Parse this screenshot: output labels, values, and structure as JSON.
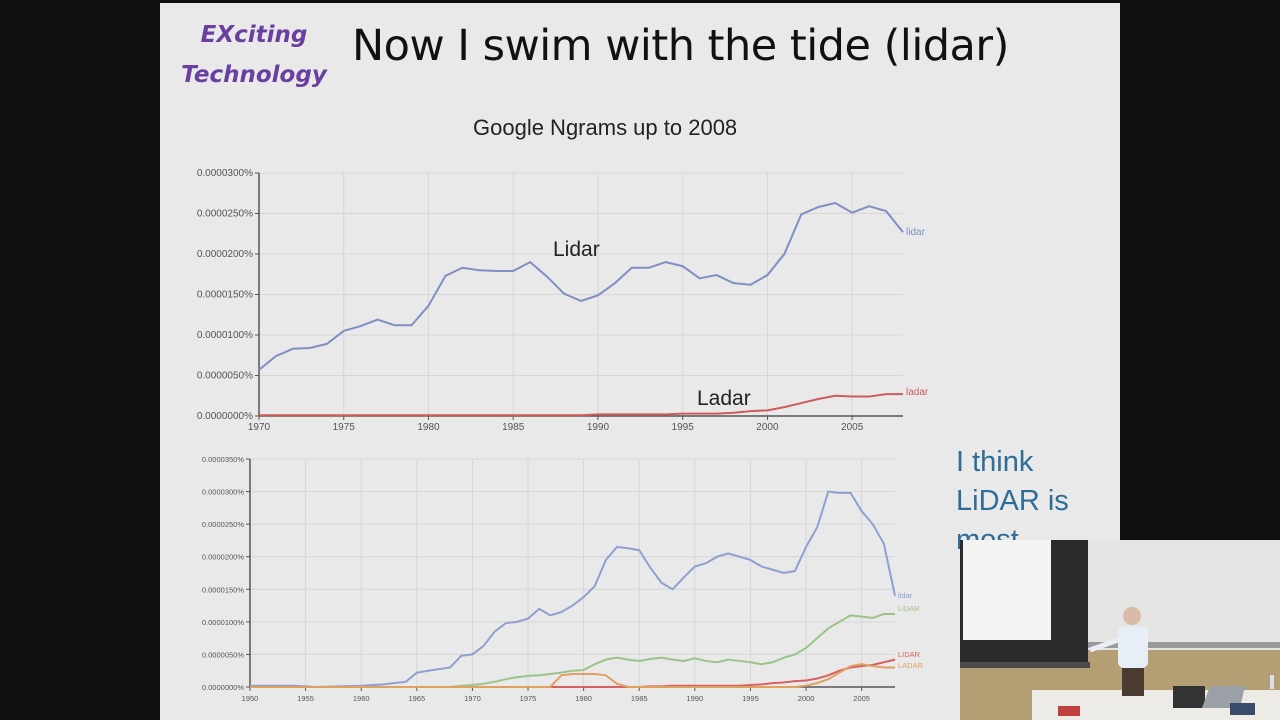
{
  "slide": {
    "brand_line1": "EXciting",
    "brand_line2": "Technology",
    "title": "Now I swim with the tide (lidar)",
    "subtitle": "Google Ngrams up to 2008",
    "side_note": "I think LiDAR is most",
    "colors": {
      "brand": "#6a3fa0",
      "lidar_line": "#7f8fc4",
      "ladar_line": "#d05a5a",
      "side_note": "#2f6d99",
      "slide_bg": "#e9e9e9",
      "frame_bg": "#0f0f0f"
    }
  },
  "upper_chart": {
    "annotation_lidar": "Lidar",
    "annotation_ladar": "Ladar",
    "series_label_lidar": "lidar",
    "series_label_ladar": "ladar"
  },
  "lower_chart": {
    "series_labels": [
      "lidar",
      "LiDAR",
      "LIDAR",
      "LADAR"
    ]
  },
  "webcam": {
    "description": "Presenter standing at front of lecture room beside projected slide"
  },
  "chart_data": [
    {
      "type": "line",
      "title": "Google Ngrams up to 2008",
      "xlabel": "",
      "ylabel": "",
      "x": [
        1970,
        1971,
        1972,
        1973,
        1974,
        1975,
        1976,
        1977,
        1978,
        1979,
        1980,
        1981,
        1982,
        1983,
        1984,
        1985,
        1986,
        1987,
        1988,
        1989,
        1990,
        1991,
        1992,
        1993,
        1994,
        1995,
        1996,
        1997,
        1998,
        1999,
        2000,
        2001,
        2002,
        2003,
        2004,
        2005,
        2006,
        2007,
        2008
      ],
      "xticks": [
        "1970",
        "1975",
        "1980",
        "1985",
        "1990",
        "1995",
        "2000",
        "2005"
      ],
      "yticks": [
        "0.0000000%",
        "0.0000050%",
        "0.0000100%",
        "0.0000150%",
        "0.0000200%",
        "0.0000250%",
        "0.0000300%"
      ],
      "ylim": [
        0,
        3e-05
      ],
      "grid": true,
      "annotations": [
        "Lidar",
        "Ladar"
      ],
      "series": [
        {
          "name": "lidar",
          "color": "#7f8fc4",
          "values": [
            5.7e-06,
            7.4e-06,
            8.3e-06,
            8.4e-06,
            8.9e-06,
            1.05e-05,
            1.11e-05,
            1.19e-05,
            1.12e-05,
            1.12e-05,
            1.36e-05,
            1.73e-05,
            1.83e-05,
            1.8e-05,
            1.79e-05,
            1.79e-05,
            1.9e-05,
            1.72e-05,
            1.51e-05,
            1.42e-05,
            1.49e-05,
            1.64e-05,
            1.83e-05,
            1.83e-05,
            1.9e-05,
            1.85e-05,
            1.7e-05,
            1.74e-05,
            1.64e-05,
            1.62e-05,
            1.74e-05,
            2e-05,
            2.49e-05,
            2.58e-05,
            2.63e-05,
            2.51e-05,
            2.59e-05,
            2.53e-05,
            2.27e-05
          ]
        },
        {
          "name": "ladar",
          "color": "#d05a5a",
          "values": [
            1e-07,
            1e-07,
            1e-07,
            1e-07,
            1e-07,
            1e-07,
            1e-07,
            1e-07,
            1e-07,
            1e-07,
            1e-07,
            1e-07,
            1e-07,
            1e-07,
            1e-07,
            1e-07,
            1e-07,
            1e-07,
            1e-07,
            1e-07,
            2e-07,
            2e-07,
            2e-07,
            2e-07,
            2e-07,
            3e-07,
            3e-07,
            3e-07,
            4e-07,
            6e-07,
            7e-07,
            1.1e-06,
            1.6e-06,
            2.1e-06,
            2.5e-06,
            2.4e-06,
            2.4e-06,
            2.7e-06,
            2.7e-06
          ]
        }
      ]
    },
    {
      "type": "line",
      "title": "",
      "xlabel": "",
      "ylabel": "",
      "x": [
        1950,
        1952,
        1954,
        1956,
        1958,
        1960,
        1962,
        1964,
        1965,
        1966,
        1968,
        1969,
        1970,
        1971,
        1972,
        1973,
        1974,
        1975,
        1976,
        1977,
        1978,
        1979,
        1980,
        1981,
        1982,
        1983,
        1984,
        1985,
        1986,
        1987,
        1988,
        1989,
        1990,
        1991,
        1992,
        1993,
        1994,
        1995,
        1996,
        1997,
        1998,
        1999,
        2000,
        2001,
        2002,
        2003,
        2004,
        2005,
        2006,
        2007,
        2008
      ],
      "xticks": [
        "1950",
        "1955",
        "1960",
        "1965",
        "1970",
        "1975",
        "1980",
        "1985",
        "1990",
        "1995",
        "2000",
        "2005"
      ],
      "yticks": [
        "0.0000000%",
        "0.0000050%",
        "0.0000100%",
        "0.0000150%",
        "0.0000200%",
        "0.0000250%",
        "0.0000300%",
        "0.0000350%"
      ],
      "ylim": [
        0,
        3.5e-05
      ],
      "grid": true,
      "series": [
        {
          "name": "lidar",
          "color": "#8fa0d0",
          "values": [
            2e-07,
            2e-07,
            2e-07,
            0.0,
            1e-07,
            2e-07,
            4e-07,
            8e-07,
            2.2e-06,
            2.5e-06,
            3e-06,
            4.8e-06,
            5e-06,
            6.3e-06,
            8.5e-06,
            9.8e-06,
            1e-05,
            1.05e-05,
            1.2e-05,
            1.1e-05,
            1.15e-05,
            1.25e-05,
            1.38e-05,
            1.55e-05,
            1.95e-05,
            2.15e-05,
            2.13e-05,
            2.1e-05,
            1.83e-05,
            1.6e-05,
            1.5e-05,
            1.68e-05,
            1.85e-05,
            1.9e-05,
            2e-05,
            2.05e-05,
            2e-05,
            1.95e-05,
            1.85e-05,
            1.8e-05,
            1.75e-05,
            1.78e-05,
            2.15e-05,
            2.45e-05,
            3e-05,
            2.98e-05,
            2.98e-05,
            2.7e-05,
            2.5e-05,
            2.2e-05,
            1.4e-05
          ]
        },
        {
          "name": "LiDAR",
          "color": "#9cc48a",
          "values": [
            0,
            0,
            0,
            0,
            0,
            0,
            0,
            0,
            0,
            0,
            0,
            2e-07,
            3e-07,
            5e-07,
            8e-07,
            1.2e-06,
            1.5e-06,
            1.7e-06,
            1.8e-06,
            2e-06,
            2.2e-06,
            2.5e-06,
            2.6e-06,
            3.5e-06,
            4.2e-06,
            4.5e-06,
            4.2e-06,
            4e-06,
            4.3e-06,
            4.5e-06,
            4.2e-06,
            4e-06,
            4.4e-06,
            4e-06,
            3.8e-06,
            4.2e-06,
            4e-06,
            3.8e-06,
            3.5e-06,
            3.8e-06,
            4.5e-06,
            5e-06,
            6e-06,
            7.5e-06,
            9e-06,
            1e-05,
            1.1e-05,
            1.08e-05,
            1.06e-05,
            1.12e-05,
            1.12e-05
          ]
        },
        {
          "name": "LIDAR",
          "color": "#d86060",
          "values": [
            0,
            0,
            0,
            0,
            0,
            0,
            0,
            0,
            0,
            0,
            0,
            0,
            0,
            0,
            0,
            0,
            0,
            0,
            0,
            0,
            0,
            0,
            0,
            0,
            0,
            0,
            0,
            0,
            1e-07,
            1e-07,
            2e-07,
            2e-07,
            2e-07,
            2e-07,
            2e-07,
            2e-07,
            2e-07,
            3e-07,
            4e-07,
            6e-07,
            7e-07,
            9e-07,
            1e-06,
            1.3e-06,
            1.8e-06,
            2.5e-06,
            3e-06,
            3.2e-06,
            3.4e-06,
            3.8e-06,
            4.2e-06
          ]
        },
        {
          "name": "LADAR",
          "color": "#e0a060",
          "values": [
            0,
            0,
            0,
            0,
            0,
            0,
            0,
            0,
            0,
            0,
            0,
            0,
            0,
            0,
            0,
            0,
            0,
            0,
            0,
            0,
            1.8e-06,
            2e-06,
            2e-06,
            2e-06,
            1.8e-06,
            5e-07,
            0,
            0,
            0,
            0,
            0,
            0,
            0,
            0,
            0,
            0,
            0,
            0,
            0,
            0,
            0,
            0,
            2e-07,
            6e-07,
            1.2e-06,
            2.2e-06,
            3.2e-06,
            3.5e-06,
            3.2e-06,
            3e-06,
            3e-06
          ]
        }
      ]
    }
  ]
}
